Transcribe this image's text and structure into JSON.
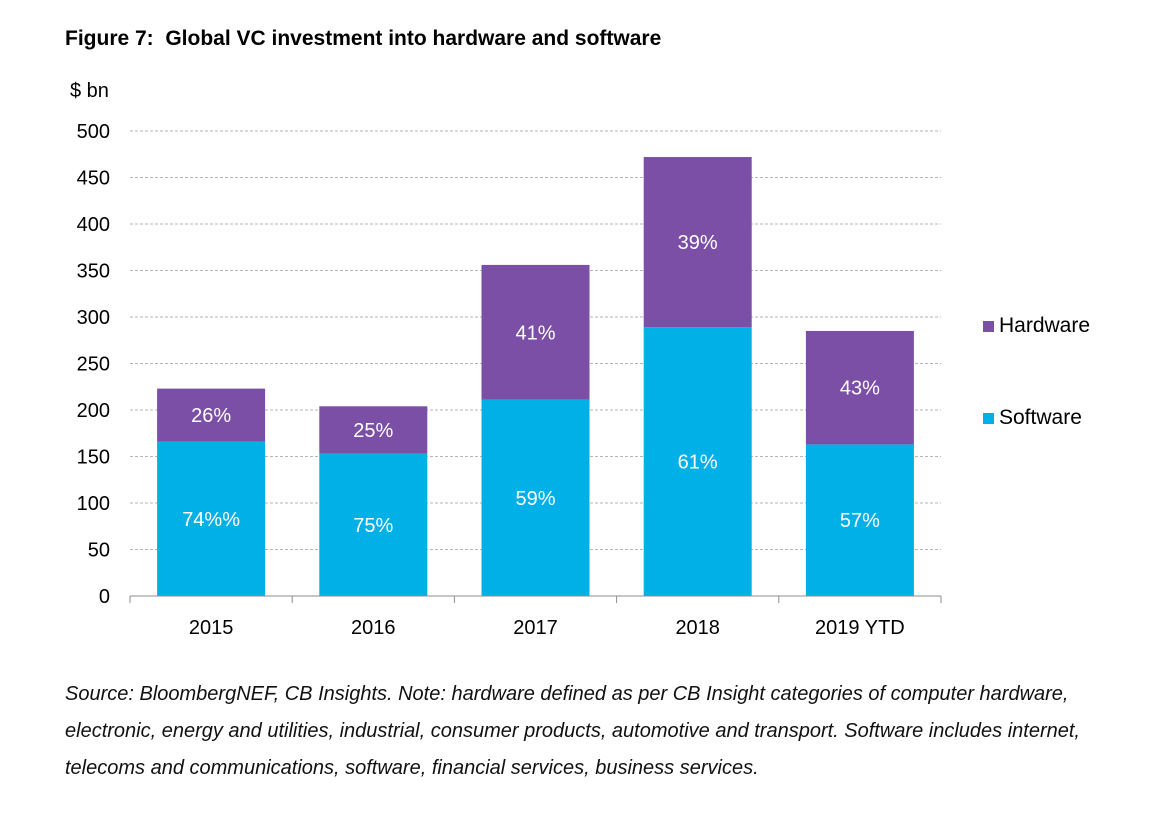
{
  "title": "Figure 7:  Global VC investment into hardware and software",
  "footnote": "Source: BloombergNEF, CB Insights. Note: hardware defined as per CB Insight categories of computer hardware, electronic, energy and utilities, industrial, consumer products, automotive and transport. Software includes internet, telecoms and communications, software, financial services, business services.",
  "chart_data": {
    "type": "bar",
    "stacked": true,
    "unit_label": "$ bn",
    "categories": [
      "2015",
      "2016",
      "2017",
      "2018",
      "2019 YTD"
    ],
    "series": [
      {
        "name": "Software",
        "color": "#00b0e6",
        "values": [
          166,
          153,
          211,
          289,
          163
        ],
        "labels": [
          "74%%",
          "75%",
          "59%",
          "61%",
          "57%"
        ]
      },
      {
        "name": "Hardware",
        "color": "#7b4fa6",
        "values": [
          57,
          51,
          145,
          183,
          122
        ],
        "labels": [
          "26%",
          "25%",
          "41%",
          "39%",
          "43%"
        ]
      }
    ],
    "ylim": [
      0,
      500
    ],
    "yticks": [
      0,
      50,
      100,
      150,
      200,
      250,
      300,
      350,
      400,
      450,
      500
    ],
    "grid": true,
    "legend": {
      "position": "right",
      "entries": [
        "Hardware",
        "Software"
      ]
    }
  }
}
